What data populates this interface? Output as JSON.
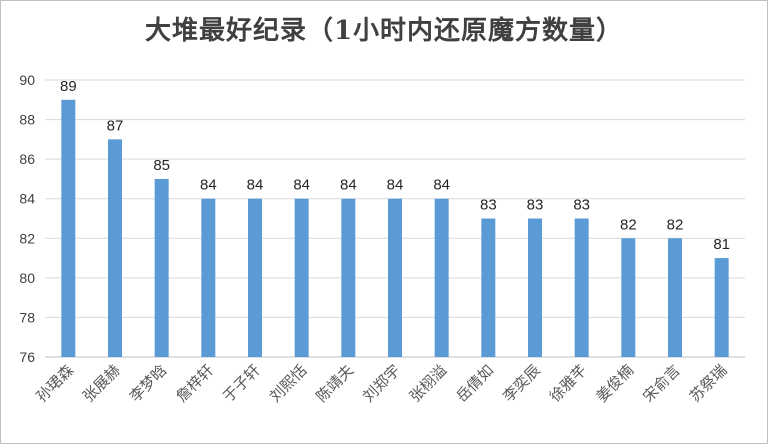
{
  "chart_data": {
    "type": "bar",
    "title": "大堆最好纪录（1小时内还原魔方数量）",
    "xlabel": "",
    "ylabel": "",
    "ylim": [
      76,
      90
    ],
    "ytick_step": 2,
    "grid": true,
    "legend": "none",
    "bar_color": "#5b9bd5",
    "categories": [
      "孙珺森",
      "张展赫",
      "李梦晗",
      "詹梓轩",
      "于子轩",
      "刘熙恬",
      "陈靖夫",
      "刘郑宇",
      "张栩溢",
      "岳倩如",
      "李奕辰",
      "徐雅芊",
      "姜俊楠",
      "宋俞言",
      "苏祭瑞"
    ],
    "values": [
      89,
      87,
      85,
      84,
      84,
      84,
      84,
      84,
      84,
      83,
      83,
      83,
      82,
      82,
      81
    ]
  }
}
